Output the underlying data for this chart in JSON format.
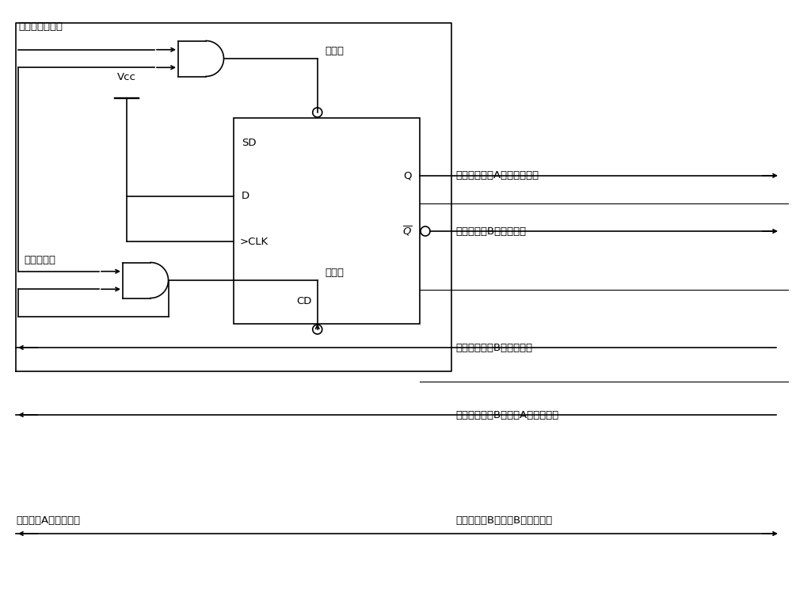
{
  "bg_color": "#ffffff",
  "line_color": "#000000",
  "text_color": "#000000",
  "fig_width": 10.0,
  "fig_height": 7.49,
  "dpi": 100,
  "labels": {
    "top_input": "中心计算机命令",
    "set_port": "置位端",
    "vcc": "Vcc",
    "SD": "SD",
    "D": "D",
    "CLK": "CLK",
    "Q": "Q",
    "Qbar": "Q",
    "CD": "CD",
    "reset_port": "复位端",
    "init_signal": "初始化信号",
    "ctrl_A": "控制监控单元A输出信号生效",
    "interlock_to_B": "去监控单元B的互锁信号",
    "interlock_from_B": "来自监控单元B的互锁信号",
    "req_A_from_B": "来自监控单元B的要求A生效的信号",
    "selfcheck_A": "监控单元A的自检信号",
    "req_B": "去监控单元B的要求B生效的信号"
  }
}
